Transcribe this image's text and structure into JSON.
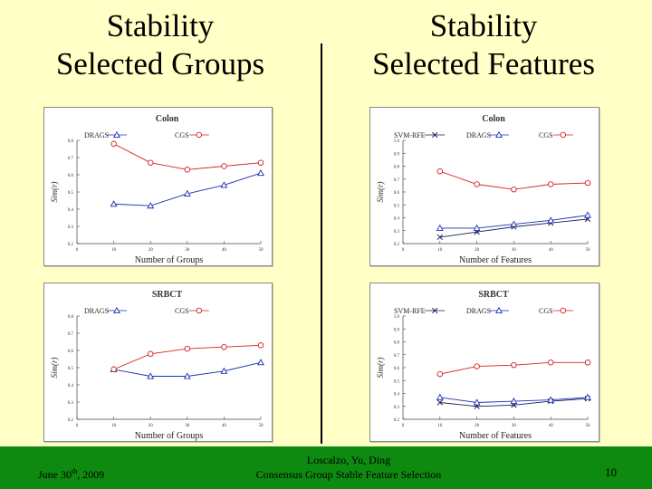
{
  "slide": {
    "title_left": [
      "Stability",
      "Selected Groups"
    ],
    "title_right": [
      "Stability",
      "Selected Features"
    ],
    "footer": {
      "date": "June 30",
      "date_sup": "th",
      "date_year": ", 2009",
      "authors": "Loscalzo, Yu, Ding",
      "subtitle": "Consensus Group Stable Feature Selection",
      "page": "10"
    }
  },
  "chart_data": [
    {
      "type": "line",
      "title": "Colon",
      "xlabel": "Number of Groups",
      "ylabel": "Sim(r)",
      "x": [
        10,
        20,
        30,
        40,
        50
      ],
      "xticks": [
        "0",
        "10",
        "20",
        "30",
        "40",
        "50"
      ],
      "yticks": [
        "0.2",
        "0.3",
        "0.4",
        "0.5",
        "0.6",
        "0.7",
        "0.8"
      ],
      "xlim": [
        0,
        50
      ],
      "ylim": [
        0.2,
        0.8
      ],
      "series": [
        {
          "name": "DRAGS",
          "marker": "triangle",
          "color": "#1c2fb0",
          "values": [
            0.43,
            0.42,
            0.49,
            0.54,
            0.61
          ]
        },
        {
          "name": "CGS",
          "marker": "circle",
          "color": "#d42222",
          "values": [
            0.78,
            0.67,
            0.63,
            0.65,
            0.67
          ]
        }
      ]
    },
    {
      "type": "line",
      "title": "Colon",
      "xlabel": "Number of Features",
      "ylabel": "Sim(r)",
      "x": [
        10,
        20,
        30,
        40,
        50
      ],
      "xticks": [
        "0",
        "10",
        "20",
        "30",
        "40",
        "50"
      ],
      "yticks": [
        "0.2",
        "0.3",
        "0.4",
        "0.5",
        "0.6",
        "0.7",
        "0.8",
        "0.9",
        "1.0"
      ],
      "xlim": [
        0,
        50
      ],
      "ylim": [
        0.2,
        1.0
      ],
      "series": [
        {
          "name": "SVM-RFE",
          "marker": "x",
          "color": "#1a1a5a",
          "values": [
            0.25,
            0.29,
            0.33,
            0.36,
            0.39
          ]
        },
        {
          "name": "DRAGS",
          "marker": "triangle",
          "color": "#1c2fb0",
          "values": [
            0.32,
            0.32,
            0.35,
            0.38,
            0.42
          ]
        },
        {
          "name": "CGS",
          "marker": "circle",
          "color": "#d42222",
          "values": [
            0.76,
            0.66,
            0.62,
            0.66,
            0.67
          ]
        }
      ]
    },
    {
      "type": "line",
      "title": "SRBCT",
      "xlabel": "Number of Groups",
      "ylabel": "Sim(r)",
      "x": [
        10,
        20,
        30,
        40,
        50
      ],
      "xticks": [
        "0",
        "10",
        "20",
        "30",
        "40",
        "50"
      ],
      "yticks": [
        "0.2",
        "0.3",
        "0.4",
        "0.5",
        "0.6",
        "0.7",
        "0.8"
      ],
      "xlim": [
        0,
        50
      ],
      "ylim": [
        0.2,
        0.8
      ],
      "series": [
        {
          "name": "DRAGS",
          "marker": "triangle",
          "color": "#1c2fb0",
          "values": [
            0.49,
            0.45,
            0.45,
            0.48,
            0.53
          ]
        },
        {
          "name": "CGS",
          "marker": "circle",
          "color": "#d42222",
          "values": [
            0.49,
            0.58,
            0.61,
            0.62,
            0.63
          ]
        }
      ]
    },
    {
      "type": "line",
      "title": "SRBCT",
      "xlabel": "Number of Features",
      "ylabel": "Sim(r)",
      "x": [
        10,
        20,
        30,
        40,
        50
      ],
      "xticks": [
        "0",
        "10",
        "20",
        "30",
        "40",
        "50"
      ],
      "yticks": [
        "0.2",
        "0.3",
        "0.4",
        "0.5",
        "0.6",
        "0.7",
        "0.8",
        "0.9",
        "1.0"
      ],
      "xlim": [
        0,
        50
      ],
      "ylim": [
        0.2,
        1.0
      ],
      "series": [
        {
          "name": "SVM-RFE",
          "marker": "x",
          "color": "#1a1a5a",
          "values": [
            0.33,
            0.3,
            0.31,
            0.34,
            0.36
          ]
        },
        {
          "name": "DRAGS",
          "marker": "triangle",
          "color": "#1c2fb0",
          "values": [
            0.37,
            0.33,
            0.34,
            0.35,
            0.37
          ]
        },
        {
          "name": "CGS",
          "marker": "circle",
          "color": "#d42222",
          "values": [
            0.55,
            0.61,
            0.62,
            0.64,
            0.64
          ]
        }
      ]
    }
  ]
}
